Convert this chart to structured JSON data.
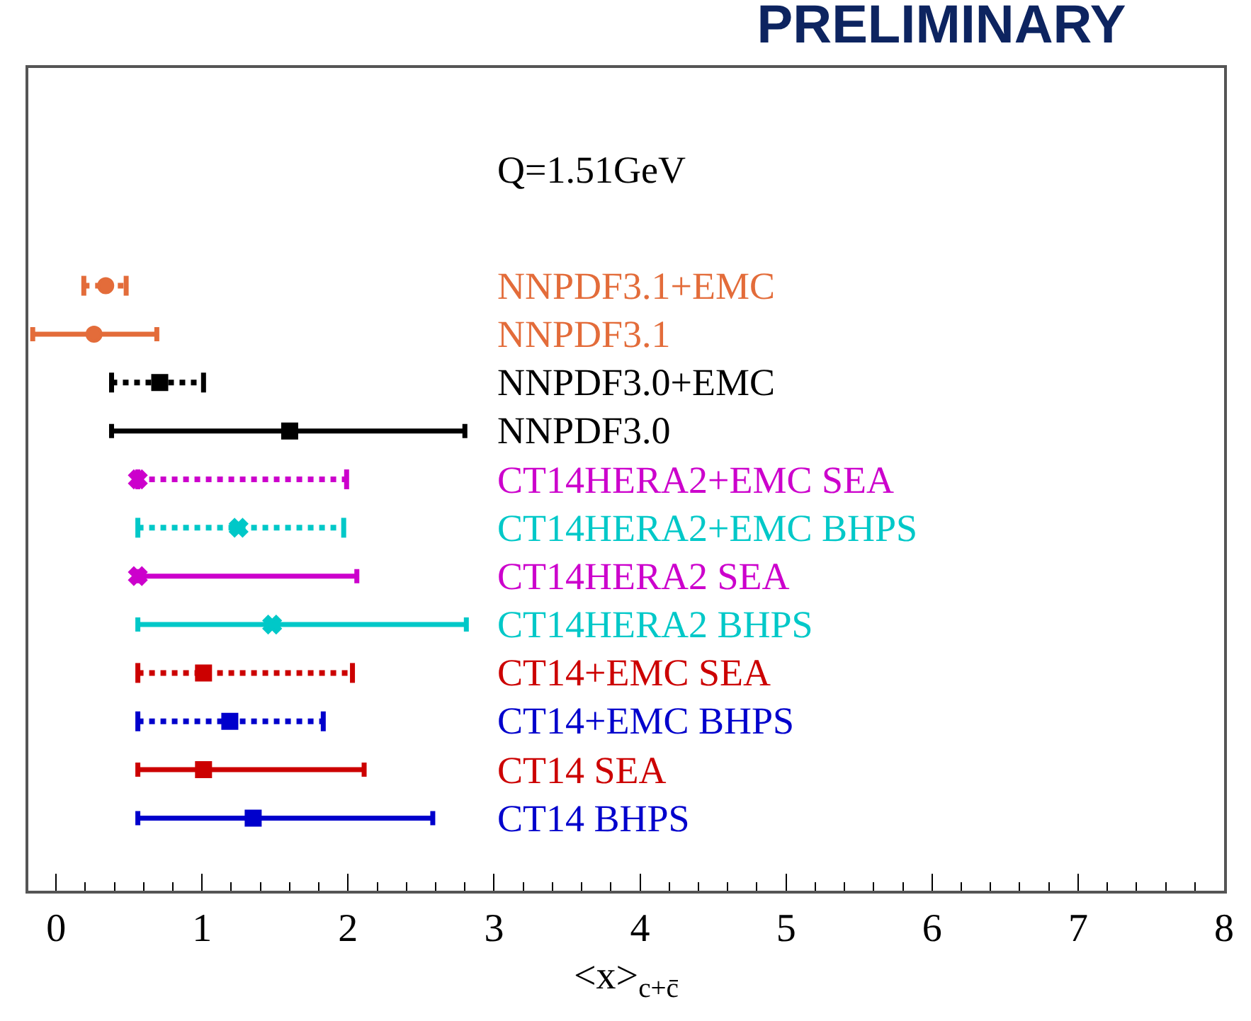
{
  "chart_data": {
    "type": "scatter",
    "orientation": "horizontal",
    "title": "PRELIMINARY",
    "xlabel": "<x>$_{c+c̄}$",
    "annotations": [
      "Q=1.51GeV"
    ],
    "categories": [
      null,
      null,
      null,
      null,
      null,
      null,
      null,
      null,
      null,
      null,
      null,
      null,
      null,
      null,
      null,
      null,
      null
    ],
    "xlim": [
      -0.19,
      8
    ],
    "xticks": [
      0,
      1,
      2,
      3,
      4,
      5,
      6,
      7,
      8
    ],
    "tick_labels": "x",
    "legend": false,
    "series": [
      {
        "name": "NNPDF3.1+EMC",
        "color": "#e36c3a",
        "marker": "circle",
        "line_style": "dotted",
        "values": [
          null,
          null,
          null,
          null,
          0.34,
          null,
          null,
          null,
          null,
          null,
          null,
          null,
          null,
          null,
          null,
          null,
          null
        ],
        "errors": [
          null,
          null,
          null,
          null,
          [
            0.19,
            0.48
          ],
          null,
          null,
          null,
          null,
          null,
          null,
          null,
          null,
          null,
          null,
          null,
          null
        ]
      },
      {
        "name": "NNPDF3.1",
        "color": "#e36c3a",
        "marker": "circle",
        "line_style": "solid",
        "values": [
          null,
          null,
          null,
          null,
          null,
          0.26,
          null,
          null,
          null,
          null,
          null,
          null,
          null,
          null,
          null,
          null,
          null
        ],
        "errors": [
          null,
          null,
          null,
          null,
          null,
          [
            -0.16,
            0.69
          ],
          null,
          null,
          null,
          null,
          null,
          null,
          null,
          null,
          null,
          null,
          null
        ]
      },
      {
        "name": "NNPDF3.0+EMC",
        "color": "#000000",
        "marker": "square",
        "line_style": "dotted",
        "values": [
          null,
          null,
          null,
          null,
          null,
          null,
          0.71,
          null,
          null,
          null,
          null,
          null,
          null,
          null,
          null,
          null,
          null
        ],
        "errors": [
          null,
          null,
          null,
          null,
          null,
          null,
          [
            0.38,
            1.01
          ],
          null,
          null,
          null,
          null,
          null,
          null,
          null,
          null,
          null,
          null
        ]
      },
      {
        "name": "NNPDF3.0",
        "color": "#000000",
        "marker": "square",
        "line_style": "solid",
        "values": [
          null,
          null,
          null,
          null,
          null,
          null,
          null,
          1.6,
          null,
          null,
          null,
          null,
          null,
          null,
          null,
          null,
          null
        ],
        "errors": [
          null,
          null,
          null,
          null,
          null,
          null,
          null,
          [
            0.38,
            2.8
          ],
          null,
          null,
          null,
          null,
          null,
          null,
          null,
          null,
          null
        ]
      },
      {
        "name": "CT14HERA2+EMC SEA",
        "color": "#cc00cc",
        "marker": "cross",
        "line_style": "dotted",
        "values": [
          null,
          null,
          null,
          null,
          null,
          null,
          null,
          null,
          0.56,
          null,
          null,
          null,
          null,
          null,
          null,
          null,
          null
        ],
        "errors": [
          null,
          null,
          null,
          null,
          null,
          null,
          null,
          null,
          [
            0.56,
            1.99
          ],
          null,
          null,
          null,
          null,
          null,
          null,
          null,
          null
        ]
      },
      {
        "name": "CT14HERA2+EMC BHPS",
        "color": "#00c8c8",
        "marker": "cross",
        "line_style": "dotted",
        "values": [
          null,
          null,
          null,
          null,
          null,
          null,
          null,
          null,
          null,
          1.25,
          null,
          null,
          null,
          null,
          null,
          null,
          null
        ],
        "errors": [
          null,
          null,
          null,
          null,
          null,
          null,
          null,
          null,
          null,
          [
            0.56,
            1.97
          ],
          null,
          null,
          null,
          null,
          null,
          null,
          null
        ]
      },
      {
        "name": "CT14HERA2 SEA",
        "color": "#cc00cc",
        "marker": "cross",
        "line_style": "solid",
        "values": [
          null,
          null,
          null,
          null,
          null,
          null,
          null,
          null,
          null,
          null,
          0.56,
          null,
          null,
          null,
          null,
          null,
          null
        ],
        "errors": [
          null,
          null,
          null,
          null,
          null,
          null,
          null,
          null,
          null,
          null,
          [
            0.56,
            2.06
          ],
          null,
          null,
          null,
          null,
          null,
          null
        ]
      },
      {
        "name": "CT14HERA2 BHPS",
        "color": "#00c8c8",
        "marker": "cross",
        "line_style": "solid",
        "values": [
          null,
          null,
          null,
          null,
          null,
          null,
          null,
          null,
          null,
          null,
          null,
          1.48,
          null,
          null,
          null,
          null,
          null
        ],
        "errors": [
          null,
          null,
          null,
          null,
          null,
          null,
          null,
          null,
          null,
          null,
          null,
          [
            0.56,
            2.81
          ],
          null,
          null,
          null,
          null,
          null
        ]
      },
      {
        "name": "CT14+EMC SEA",
        "color": "#cc0000",
        "marker": "square",
        "line_style": "dotted",
        "values": [
          null,
          null,
          null,
          null,
          null,
          null,
          null,
          null,
          null,
          null,
          null,
          null,
          1.01,
          null,
          null,
          null,
          null
        ],
        "errors": [
          null,
          null,
          null,
          null,
          null,
          null,
          null,
          null,
          null,
          null,
          null,
          null,
          [
            0.56,
            2.03
          ],
          null,
          null,
          null,
          null
        ]
      },
      {
        "name": "CT14+EMC BHPS",
        "color": "#0000cc",
        "marker": "square",
        "line_style": "dotted",
        "values": [
          null,
          null,
          null,
          null,
          null,
          null,
          null,
          null,
          null,
          null,
          null,
          null,
          null,
          1.19,
          null,
          null,
          null
        ],
        "errors": [
          null,
          null,
          null,
          null,
          null,
          null,
          null,
          null,
          null,
          null,
          null,
          null,
          null,
          [
            0.56,
            1.83
          ],
          null,
          null,
          null
        ]
      },
      {
        "name": "CT14 SEA",
        "color": "#cc0000",
        "marker": "square",
        "line_style": "solid",
        "values": [
          null,
          null,
          null,
          null,
          null,
          null,
          null,
          null,
          null,
          null,
          null,
          null,
          null,
          null,
          1.01,
          null,
          null
        ],
        "errors": [
          null,
          null,
          null,
          null,
          null,
          null,
          null,
          null,
          null,
          null,
          null,
          null,
          null,
          null,
          [
            0.56,
            2.11
          ],
          null,
          null
        ]
      },
      {
        "name": "CT14 BHPS",
        "color": "#0000cc",
        "marker": "square",
        "line_style": "solid",
        "values": [
          null,
          null,
          null,
          null,
          null,
          null,
          null,
          null,
          null,
          null,
          null,
          null,
          null,
          null,
          null,
          1.35,
          null
        ],
        "errors": [
          null,
          null,
          null,
          null,
          null,
          null,
          null,
          null,
          null,
          null,
          null,
          null,
          null,
          null,
          null,
          [
            0.56,
            2.58
          ],
          null
        ]
      }
    ]
  }
}
